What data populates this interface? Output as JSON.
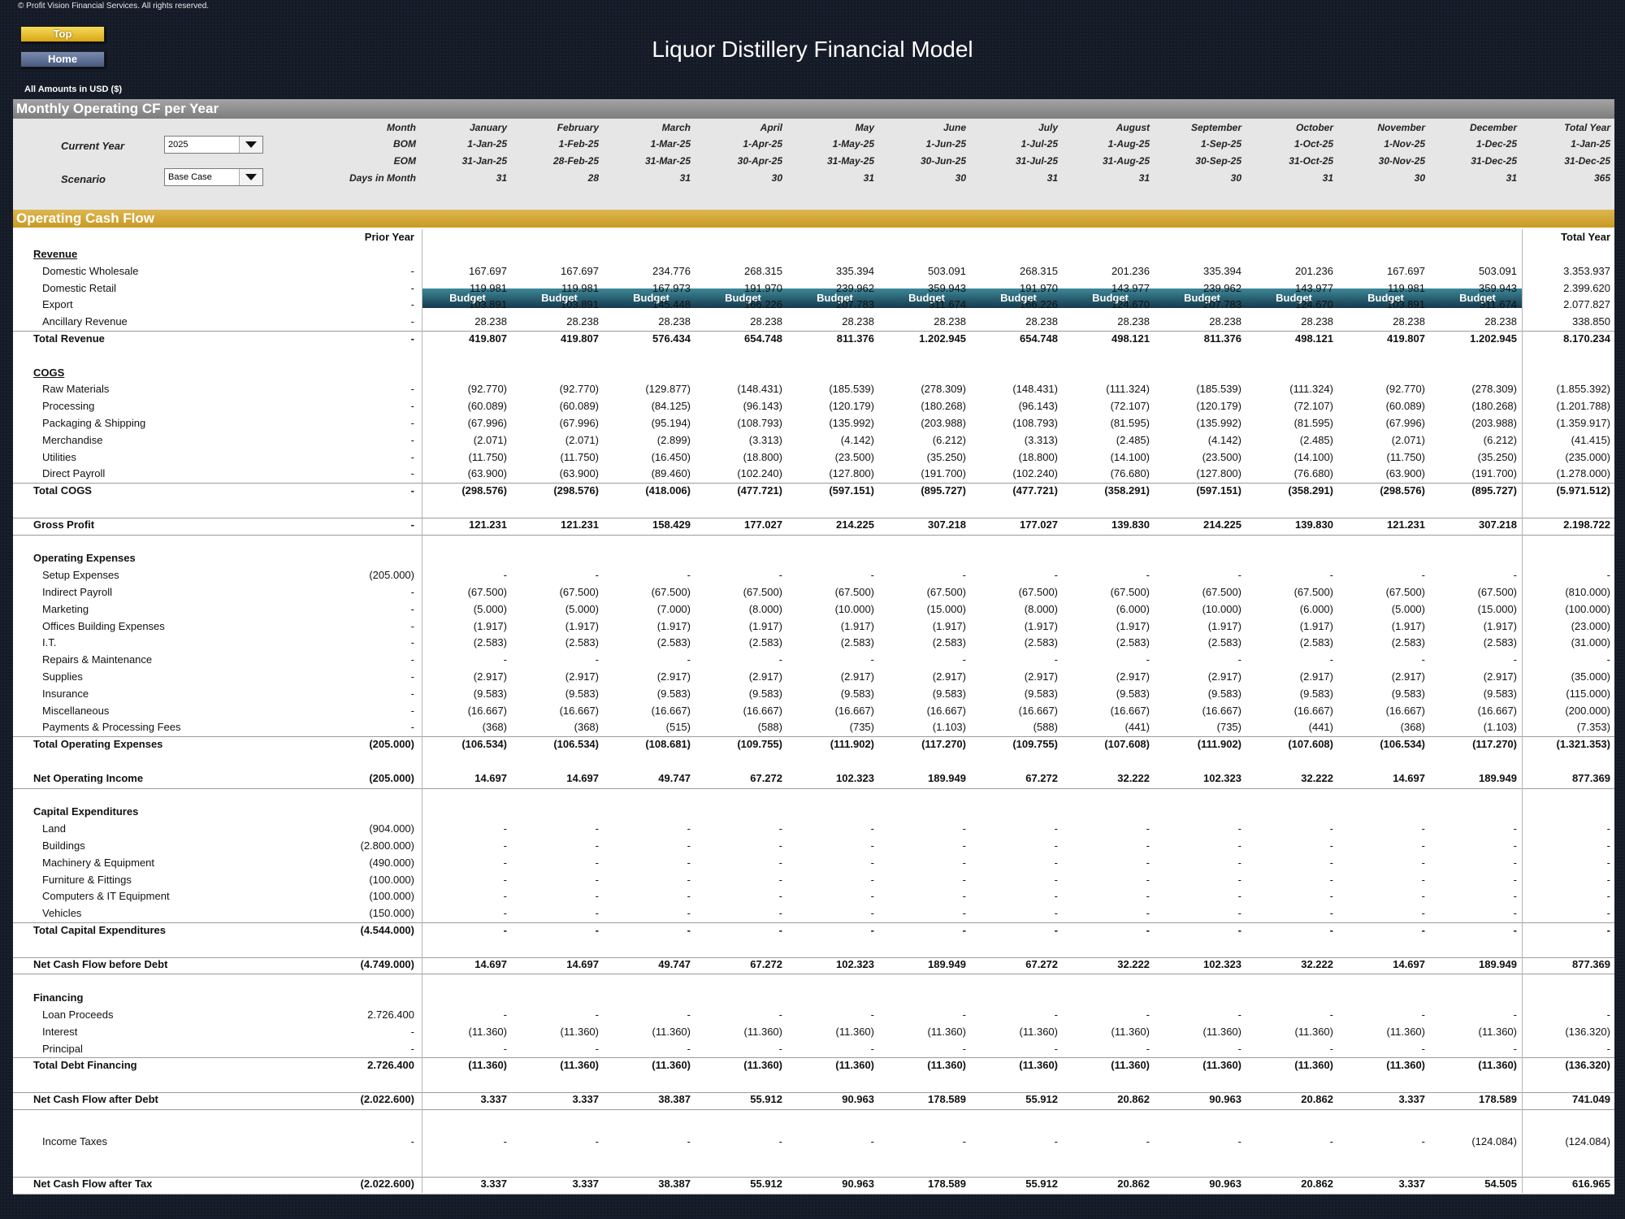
{
  "copyright": "© Profit Vision Financial Services. All rights reserved.",
  "buttons": {
    "top": "Top",
    "home": "Home"
  },
  "title": "Liquor Distillery Financial Model",
  "amounts_label": "All Amounts in  USD ($)",
  "section_title": "Monthly Operating CF per Year",
  "controls": {
    "current_year_label": "Current Year",
    "current_year_value": "2025",
    "scenario_label": "Scenario",
    "scenario_value": "Base Case"
  },
  "header_labels": {
    "month": "Month",
    "bom": "BOM",
    "eom": "EOM",
    "days": "Days in Month"
  },
  "months": [
    {
      "name": "January",
      "bom": "1-Jan-25",
      "eom": "31-Jan-25",
      "days": "31",
      "type": "Budget"
    },
    {
      "name": "February",
      "bom": "1-Feb-25",
      "eom": "28-Feb-25",
      "days": "28",
      "type": "Budget"
    },
    {
      "name": "March",
      "bom": "1-Mar-25",
      "eom": "31-Mar-25",
      "days": "31",
      "type": "Budget"
    },
    {
      "name": "April",
      "bom": "1-Apr-25",
      "eom": "30-Apr-25",
      "days": "30",
      "type": "Budget"
    },
    {
      "name": "May",
      "bom": "1-May-25",
      "eom": "31-May-25",
      "days": "31",
      "type": "Budget"
    },
    {
      "name": "June",
      "bom": "1-Jun-25",
      "eom": "30-Jun-25",
      "days": "30",
      "type": "Budget"
    },
    {
      "name": "July",
      "bom": "1-Jul-25",
      "eom": "31-Jul-25",
      "days": "31",
      "type": "Budget"
    },
    {
      "name": "August",
      "bom": "1-Aug-25",
      "eom": "31-Aug-25",
      "days": "31",
      "type": "Budget"
    },
    {
      "name": "September",
      "bom": "1-Sep-25",
      "eom": "30-Sep-25",
      "days": "30",
      "type": "Budget"
    },
    {
      "name": "October",
      "bom": "1-Oct-25",
      "eom": "31-Oct-25",
      "days": "31",
      "type": "Budget"
    },
    {
      "name": "November",
      "bom": "1-Nov-25",
      "eom": "30-Nov-25",
      "days": "30",
      "type": "Budget"
    },
    {
      "name": "December",
      "bom": "1-Dec-25",
      "eom": "31-Dec-25",
      "days": "31",
      "type": "Budget"
    }
  ],
  "total_col": {
    "name": "Total Year",
    "bom": "1-Jan-25",
    "eom": "31-Dec-25",
    "days": "365"
  },
  "ocf_title": "Operating Cash Flow",
  "col_headers": {
    "prior": "Prior Year",
    "total": "Total Year"
  },
  "rows": [
    {
      "kind": "head",
      "label": "Revenue",
      "underline": true
    },
    {
      "kind": "item",
      "label": "Domestic Wholesale",
      "prior": "-",
      "values": [
        "167.697",
        "167.697",
        "234.776",
        "268.315",
        "335.394",
        "503.091",
        "268.315",
        "201.236",
        "335.394",
        "201.236",
        "167.697",
        "503.091"
      ],
      "total": "3.353.937"
    },
    {
      "kind": "item",
      "label": "Domestic Retail",
      "prior": "-",
      "values": [
        "119.981",
        "119.981",
        "167.973",
        "191.970",
        "239.962",
        "359.943",
        "191.970",
        "143.977",
        "239.962",
        "143.977",
        "119.981",
        "359.943"
      ],
      "total": "2.399.620"
    },
    {
      "kind": "item",
      "label": "Export",
      "prior": "-",
      "values": [
        "103.891",
        "103.891",
        "145.448",
        "166.226",
        "207.783",
        "311.674",
        "166.226",
        "124.670",
        "207.783",
        "124.670",
        "103.891",
        "311.674"
      ],
      "total": "2.077.827"
    },
    {
      "kind": "item",
      "label": "Ancillary Revenue",
      "prior": "-",
      "values": [
        "28.238",
        "28.238",
        "28.238",
        "28.238",
        "28.238",
        "28.238",
        "28.238",
        "28.238",
        "28.238",
        "28.238",
        "28.238",
        "28.238"
      ],
      "total": "338.850"
    },
    {
      "kind": "total",
      "label": "Total Revenue",
      "prior": "-",
      "values": [
        "419.807",
        "419.807",
        "576.434",
        "654.748",
        "811.376",
        "1.202.945",
        "654.748",
        "498.121",
        "811.376",
        "498.121",
        "419.807",
        "1.202.945"
      ],
      "total": "8.170.234",
      "line_above": true
    },
    {
      "kind": "blank"
    },
    {
      "kind": "head",
      "label": "COGS",
      "underline": true
    },
    {
      "kind": "item",
      "label": "Raw Materials",
      "prior": "-",
      "values": [
        "(92.770)",
        "(92.770)",
        "(129.877)",
        "(148.431)",
        "(185.539)",
        "(278.309)",
        "(148.431)",
        "(111.324)",
        "(185.539)",
        "(111.324)",
        "(92.770)",
        "(278.309)"
      ],
      "total": "(1.855.392)"
    },
    {
      "kind": "item",
      "label": "Processing",
      "prior": "-",
      "values": [
        "(60.089)",
        "(60.089)",
        "(84.125)",
        "(96.143)",
        "(120.179)",
        "(180.268)",
        "(96.143)",
        "(72.107)",
        "(120.179)",
        "(72.107)",
        "(60.089)",
        "(180.268)"
      ],
      "total": "(1.201.788)"
    },
    {
      "kind": "item",
      "label": "Packaging & Shipping",
      "prior": "-",
      "values": [
        "(67.996)",
        "(67.996)",
        "(95.194)",
        "(108.793)",
        "(135.992)",
        "(203.988)",
        "(108.793)",
        "(81.595)",
        "(135.992)",
        "(81.595)",
        "(67.996)",
        "(203.988)"
      ],
      "total": "(1.359.917)"
    },
    {
      "kind": "item",
      "label": "Merchandise",
      "prior": "-",
      "values": [
        "(2.071)",
        "(2.071)",
        "(2.899)",
        "(3.313)",
        "(4.142)",
        "(6.212)",
        "(3.313)",
        "(2.485)",
        "(4.142)",
        "(2.485)",
        "(2.071)",
        "(6.212)"
      ],
      "total": "(41.415)"
    },
    {
      "kind": "item",
      "label": "Utilities",
      "prior": "-",
      "values": [
        "(11.750)",
        "(11.750)",
        "(16.450)",
        "(18.800)",
        "(23.500)",
        "(35.250)",
        "(18.800)",
        "(14.100)",
        "(23.500)",
        "(14.100)",
        "(11.750)",
        "(35.250)"
      ],
      "total": "(235.000)"
    },
    {
      "kind": "item",
      "label": "Direct Payroll",
      "prior": "-",
      "values": [
        "(63.900)",
        "(63.900)",
        "(89.460)",
        "(102.240)",
        "(127.800)",
        "(191.700)",
        "(102.240)",
        "(76.680)",
        "(127.800)",
        "(76.680)",
        "(63.900)",
        "(191.700)"
      ],
      "total": "(1.278.000)"
    },
    {
      "kind": "total",
      "label": "Total COGS",
      "prior": "-",
      "values": [
        "(298.576)",
        "(298.576)",
        "(418.006)",
        "(477.721)",
        "(597.151)",
        "(895.727)",
        "(477.721)",
        "(358.291)",
        "(597.151)",
        "(358.291)",
        "(298.576)",
        "(895.727)"
      ],
      "total": "(5.971.512)",
      "line_above": true
    },
    {
      "kind": "blank",
      "line_below": true
    },
    {
      "kind": "total",
      "label": "Gross Profit",
      "prior": "-",
      "values": [
        "121.231",
        "121.231",
        "158.429",
        "177.027",
        "214.225",
        "307.218",
        "177.027",
        "139.830",
        "214.225",
        "139.830",
        "121.231",
        "307.218"
      ],
      "total": "2.198.722",
      "line_below": true
    },
    {
      "kind": "blank"
    },
    {
      "kind": "head",
      "label": "Operating Expenses"
    },
    {
      "kind": "item",
      "label": "Setup Expenses",
      "prior": "(205.000)",
      "values": [
        "-",
        "-",
        "-",
        "-",
        "-",
        "-",
        "-",
        "-",
        "-",
        "-",
        "-",
        "-"
      ],
      "total": "-"
    },
    {
      "kind": "item",
      "label": "Indirect Payroll",
      "prior": "-",
      "values": [
        "(67.500)",
        "(67.500)",
        "(67.500)",
        "(67.500)",
        "(67.500)",
        "(67.500)",
        "(67.500)",
        "(67.500)",
        "(67.500)",
        "(67.500)",
        "(67.500)",
        "(67.500)"
      ],
      "total": "(810.000)"
    },
    {
      "kind": "item",
      "label": "Marketing",
      "prior": "-",
      "values": [
        "(5.000)",
        "(5.000)",
        "(7.000)",
        "(8.000)",
        "(10.000)",
        "(15.000)",
        "(8.000)",
        "(6.000)",
        "(10.000)",
        "(6.000)",
        "(5.000)",
        "(15.000)"
      ],
      "total": "(100.000)"
    },
    {
      "kind": "item",
      "label": "Offices Building Expenses",
      "prior": "-",
      "values": [
        "(1.917)",
        "(1.917)",
        "(1.917)",
        "(1.917)",
        "(1.917)",
        "(1.917)",
        "(1.917)",
        "(1.917)",
        "(1.917)",
        "(1.917)",
        "(1.917)",
        "(1.917)"
      ],
      "total": "(23.000)"
    },
    {
      "kind": "item",
      "label": "I.T.",
      "prior": "-",
      "values": [
        "(2.583)",
        "(2.583)",
        "(2.583)",
        "(2.583)",
        "(2.583)",
        "(2.583)",
        "(2.583)",
        "(2.583)",
        "(2.583)",
        "(2.583)",
        "(2.583)",
        "(2.583)"
      ],
      "total": "(31.000)"
    },
    {
      "kind": "item",
      "label": "Repairs & Maintenance",
      "prior": "-",
      "values": [
        "-",
        "-",
        "-",
        "-",
        "-",
        "-",
        "-",
        "-",
        "-",
        "-",
        "-",
        "-"
      ],
      "total": "-"
    },
    {
      "kind": "item",
      "label": "Supplies",
      "prior": "-",
      "values": [
        "(2.917)",
        "(2.917)",
        "(2.917)",
        "(2.917)",
        "(2.917)",
        "(2.917)",
        "(2.917)",
        "(2.917)",
        "(2.917)",
        "(2.917)",
        "(2.917)",
        "(2.917)"
      ],
      "total": "(35.000)"
    },
    {
      "kind": "item",
      "label": "Insurance",
      "prior": "-",
      "values": [
        "(9.583)",
        "(9.583)",
        "(9.583)",
        "(9.583)",
        "(9.583)",
        "(9.583)",
        "(9.583)",
        "(9.583)",
        "(9.583)",
        "(9.583)",
        "(9.583)",
        "(9.583)"
      ],
      "total": "(115.000)"
    },
    {
      "kind": "item",
      "label": "Miscellaneous",
      "prior": "-",
      "values": [
        "(16.667)",
        "(16.667)",
        "(16.667)",
        "(16.667)",
        "(16.667)",
        "(16.667)",
        "(16.667)",
        "(16.667)",
        "(16.667)",
        "(16.667)",
        "(16.667)",
        "(16.667)"
      ],
      "total": "(200.000)"
    },
    {
      "kind": "item",
      "label": "Payments & Processing Fees",
      "prior": "-",
      "values": [
        "(368)",
        "(368)",
        "(515)",
        "(588)",
        "(735)",
        "(1.103)",
        "(588)",
        "(441)",
        "(735)",
        "(441)",
        "(368)",
        "(1.103)"
      ],
      "total": "(7.353)"
    },
    {
      "kind": "total",
      "label": "Total Operating Expenses",
      "prior": "(205.000)",
      "values": [
        "(106.534)",
        "(106.534)",
        "(108.681)",
        "(109.755)",
        "(111.902)",
        "(117.270)",
        "(109.755)",
        "(107.608)",
        "(111.902)",
        "(107.608)",
        "(106.534)",
        "(117.270)"
      ],
      "total": "(1.321.353)",
      "line_above": true
    },
    {
      "kind": "blank"
    },
    {
      "kind": "total",
      "label": "Net Operating Income",
      "prior": "(205.000)",
      "values": [
        "14.697",
        "14.697",
        "49.747",
        "67.272",
        "102.323",
        "189.949",
        "67.272",
        "32.222",
        "102.323",
        "32.222",
        "14.697",
        "189.949"
      ],
      "total": "877.369",
      "line_below": true
    },
    {
      "kind": "blank"
    },
    {
      "kind": "head",
      "label": "Capital Expenditures"
    },
    {
      "kind": "item",
      "label": "Land",
      "prior": "(904.000)",
      "values": [
        "-",
        "-",
        "-",
        "-",
        "-",
        "-",
        "-",
        "-",
        "-",
        "-",
        "-",
        "-"
      ],
      "total": "-"
    },
    {
      "kind": "item",
      "label": "Buildings",
      "prior": "(2.800.000)",
      "values": [
        "-",
        "-",
        "-",
        "-",
        "-",
        "-",
        "-",
        "-",
        "-",
        "-",
        "-",
        "-"
      ],
      "total": "-"
    },
    {
      "kind": "item",
      "label": "Machinery & Equipment",
      "prior": "(490.000)",
      "values": [
        "-",
        "-",
        "-",
        "-",
        "-",
        "-",
        "-",
        "-",
        "-",
        "-",
        "-",
        "-"
      ],
      "total": "-"
    },
    {
      "kind": "item",
      "label": "Furniture & Fittings",
      "prior": "(100.000)",
      "values": [
        "-",
        "-",
        "-",
        "-",
        "-",
        "-",
        "-",
        "-",
        "-",
        "-",
        "-",
        "-"
      ],
      "total": "-"
    },
    {
      "kind": "item",
      "label": "Computers & IT Equipment",
      "prior": "(100.000)",
      "values": [
        "-",
        "-",
        "-",
        "-",
        "-",
        "-",
        "-",
        "-",
        "-",
        "-",
        "-",
        "-"
      ],
      "total": "-"
    },
    {
      "kind": "item",
      "label": "Vehicles",
      "prior": "(150.000)",
      "values": [
        "-",
        "-",
        "-",
        "-",
        "-",
        "-",
        "-",
        "-",
        "-",
        "-",
        "-",
        "-"
      ],
      "total": "-"
    },
    {
      "kind": "total",
      "label": "Total Capital Expenditures",
      "prior": "(4.544.000)",
      "values": [
        "-",
        "-",
        "-",
        "-",
        "-",
        "-",
        "-",
        "-",
        "-",
        "-",
        "-",
        "-"
      ],
      "total": "-",
      "line_above": true
    },
    {
      "kind": "blank",
      "line_below": true
    },
    {
      "kind": "total",
      "label": "Net Cash Flow before Debt",
      "prior": "(4.749.000)",
      "values": [
        "14.697",
        "14.697",
        "49.747",
        "67.272",
        "102.323",
        "189.949",
        "67.272",
        "32.222",
        "102.323",
        "32.222",
        "14.697",
        "189.949"
      ],
      "total": "877.369",
      "line_below": true
    },
    {
      "kind": "blank"
    },
    {
      "kind": "head",
      "label": "Financing"
    },
    {
      "kind": "item",
      "label": "Loan Proceeds",
      "prior": "2.726.400",
      "values": [
        "-",
        "-",
        "-",
        "-",
        "-",
        "-",
        "-",
        "-",
        "-",
        "-",
        "-",
        "-"
      ],
      "total": "-"
    },
    {
      "kind": "item",
      "label": "Interest",
      "prior": "-",
      "values": [
        "(11.360)",
        "(11.360)",
        "(11.360)",
        "(11.360)",
        "(11.360)",
        "(11.360)",
        "(11.360)",
        "(11.360)",
        "(11.360)",
        "(11.360)",
        "(11.360)",
        "(11.360)"
      ],
      "total": "(136.320)"
    },
    {
      "kind": "item",
      "label": "Principal",
      "prior": "-",
      "values": [
        "-",
        "-",
        "-",
        "-",
        "-",
        "-",
        "-",
        "-",
        "-",
        "-",
        "-",
        "-"
      ],
      "total": "-"
    },
    {
      "kind": "total",
      "label": "Total Debt Financing",
      "prior": "2.726.400",
      "values": [
        "(11.360)",
        "(11.360)",
        "(11.360)",
        "(11.360)",
        "(11.360)",
        "(11.360)",
        "(11.360)",
        "(11.360)",
        "(11.360)",
        "(11.360)",
        "(11.360)",
        "(11.360)"
      ],
      "total": "(136.320)",
      "line_above": true
    },
    {
      "kind": "blank",
      "line_below": true
    },
    {
      "kind": "total",
      "label": "Net Cash Flow after Debt",
      "prior": "(2.022.600)",
      "values": [
        "3.337",
        "3.337",
        "38.387",
        "55.912",
        "90.963",
        "178.589",
        "55.912",
        "20.862",
        "90.963",
        "20.862",
        "3.337",
        "178.589"
      ],
      "total": "741.049",
      "line_below": true
    },
    {
      "kind": "blank"
    },
    {
      "kind": "item",
      "label": "Income Taxes",
      "prior": "-",
      "values": [
        "-",
        "-",
        "-",
        "-",
        "-",
        "-",
        "-",
        "-",
        "-",
        "-",
        "-",
        "(124.084)"
      ],
      "total": "(124.084)",
      "tall": true
    },
    {
      "kind": "blank",
      "line_below": true
    },
    {
      "kind": "total",
      "label": "Net Cash Flow after Tax",
      "prior": "(2.022.600)",
      "values": [
        "3.337",
        "3.337",
        "38.387",
        "55.912",
        "90.963",
        "178.589",
        "55.912",
        "20.862",
        "90.963",
        "20.862",
        "3.337",
        "54.505"
      ],
      "total": "616.965",
      "line_below": true
    }
  ]
}
